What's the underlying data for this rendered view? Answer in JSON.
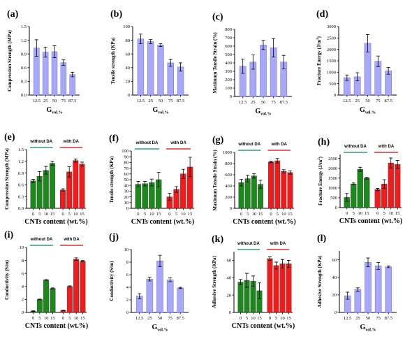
{
  "colors": {
    "blue": "#a8a8f8",
    "green": "#1b8a1b",
    "red": "#f21b1b",
    "green_line": "#2e9e7a",
    "red_line": "#e03030",
    "axis": "#000000"
  },
  "chart_data": [
    {
      "id": "a",
      "label": "(a)",
      "type": "bar",
      "ylabel": "Compression Strength (MPa)",
      "xlabel": "G",
      "xlabel_sub": "vol.%",
      "categories": [
        "12.5",
        "25",
        "50",
        "75",
        "87.5"
      ],
      "yticks": [
        "0.0",
        "0.3",
        "0.6",
        "0.9",
        "1.2",
        "1.5"
      ],
      "ylim": [
        0,
        1.5
      ],
      "values": [
        1.03,
        0.94,
        0.95,
        0.71,
        0.45
      ],
      "errors": [
        0.18,
        0.11,
        0.13,
        0.06,
        0.05
      ]
    },
    {
      "id": "b",
      "label": "(b)",
      "type": "bar",
      "ylabel": "Tensile strength (KPa)",
      "xlabel": "G",
      "xlabel_sub": "vol.%",
      "categories": [
        "12.5",
        "25",
        "50",
        "75",
        "87.5"
      ],
      "yticks": [
        "0",
        "20",
        "40",
        "60",
        "80",
        "100"
      ],
      "ylim": [
        0,
        100
      ],
      "values": [
        82,
        78,
        73,
        47,
        41
      ],
      "errors": [
        7,
        3,
        2,
        5,
        6
      ]
    },
    {
      "id": "c",
      "label": "(c)",
      "type": "bar",
      "ylabel": "Maximum Tensile Strain (%)",
      "xlabel": "G",
      "xlabel_sub": "vol.%",
      "categories": [
        "12.5",
        "25",
        "50",
        "75",
        "87.5"
      ],
      "yticks": [
        "0",
        "100",
        "200",
        "300",
        "400",
        "500",
        "600",
        "700",
        "800"
      ],
      "ylim": [
        0,
        800
      ],
      "values": [
        360,
        410,
        615,
        580,
        410
      ],
      "errors": [
        85,
        85,
        55,
        110,
        80
      ]
    },
    {
      "id": "d",
      "label": "(d)",
      "type": "bar",
      "ylabel": "Fracture Energy (J/m",
      "ylabel_sup": "2",
      "ylabel_end": ")",
      "xlabel": "G",
      "xlabel_sub": "vol.%",
      "categories": [
        "12.5",
        "25",
        "50",
        "75",
        "87.5"
      ],
      "yticks": [
        "0",
        "500",
        "1000",
        "1500",
        "2000",
        "2500",
        "3000"
      ],
      "ylim": [
        0,
        3000
      ],
      "values": [
        760,
        800,
        2270,
        1480,
        1060
      ],
      "errors": [
        120,
        180,
        380,
        230,
        150
      ]
    },
    {
      "id": "e",
      "label": "(e)",
      "type": "grouped-bar",
      "ylabel": "Compression Strength (MPa)",
      "xlabel": "CNTs content (wt.%)",
      "categories": [
        "0",
        "5",
        "10",
        "15"
      ],
      "yticks": [
        "0.0",
        "0.3",
        "0.6",
        "0.9",
        "1.2",
        "1.5"
      ],
      "ylim": [
        0,
        1.5
      ],
      "groups": [
        {
          "name": "without DA",
          "color": "green",
          "values": [
            0.7,
            0.82,
            0.97,
            1.15
          ],
          "errors": [
            0.04,
            0.12,
            0.1,
            0.05
          ]
        },
        {
          "name": "with DA",
          "color": "red",
          "values": [
            0.47,
            0.93,
            1.22,
            1.13
          ],
          "errors": [
            0.03,
            0.13,
            0.04,
            0.05
          ]
        }
      ]
    },
    {
      "id": "f",
      "label": "(f)",
      "type": "grouped-bar",
      "ylabel": "Tensile strength (KPa)",
      "xlabel": "CNTs content (wt.%)",
      "categories": [
        "0",
        "5",
        "10",
        "15"
      ],
      "yticks": [
        "0",
        "10",
        "20",
        "30",
        "40",
        "50",
        "60",
        "70",
        "80",
        "90",
        "100"
      ],
      "ylim": [
        0,
        100
      ],
      "groups": [
        {
          "name": "without DA",
          "color": "green",
          "values": [
            42,
            43,
            45,
            50
          ],
          "errors": [
            5,
            4,
            6,
            13
          ]
        },
        {
          "name": "with DA",
          "color": "red",
          "values": [
            20,
            33,
            60,
            72
          ],
          "errors": [
            6,
            5,
            8,
            17
          ]
        }
      ]
    },
    {
      "id": "g",
      "label": "(g)",
      "type": "grouped-bar",
      "ylabel": "Maximum Tensile Strain (%)",
      "xlabel": "CNTs content (wt.%)",
      "categories": [
        "0",
        "5",
        "10",
        "15"
      ],
      "yticks": [
        "0",
        "200",
        "400",
        "600",
        "800",
        "1000"
      ],
      "ylim": [
        0,
        1000
      ],
      "groups": [
        {
          "name": "without DA",
          "color": "green",
          "values": [
            460,
            530,
            580,
            430
          ],
          "errors": [
            60,
            60,
            40,
            70
          ]
        },
        {
          "name": "with DA",
          "color": "red",
          "values": [
            830,
            850,
            660,
            640
          ],
          "errors": [
            15,
            40,
            30,
            30
          ]
        }
      ]
    },
    {
      "id": "h",
      "label": "(h)",
      "type": "grouped-bar",
      "ylabel": "Fracture Energy (J/m",
      "ylabel_sup": "2",
      "ylabel_end": ")",
      "xlabel": "CNTs content (wt.%)",
      "categories": [
        "0",
        "5",
        "10",
        "15"
      ],
      "yticks": [
        "0",
        "500",
        "1000",
        "1500",
        "2000",
        "2500"
      ],
      "ylim": [
        0,
        2700
      ],
      "groups": [
        {
          "name": "without DA",
          "color": "green",
          "values": [
            520,
            1200,
            1950,
            1500
          ],
          "errors": [
            200,
            50,
            100,
            50
          ]
        },
        {
          "name": "with DA",
          "color": "red",
          "values": [
            920,
            1200,
            2270,
            2200
          ],
          "errors": [
            60,
            220,
            250,
            200
          ]
        }
      ]
    },
    {
      "id": "i",
      "label": "(i)",
      "type": "grouped-bar",
      "ylabel": "Conductivity (S/m)",
      "xlabel": "CNTs content (wt.%)",
      "categories": [
        "0",
        "5",
        "10",
        "15"
      ],
      "yticks": [
        "0",
        "2",
        "4",
        "6",
        "8",
        "10"
      ],
      "ylim": [
        0,
        10
      ],
      "groups": [
        {
          "name": "without DA",
          "color": "green",
          "values": [
            0.2,
            2.0,
            5.0,
            3.7
          ],
          "errors": [
            0.05,
            0.05,
            0.05,
            0.08
          ]
        },
        {
          "name": "with DA",
          "color": "red",
          "values": [
            0.3,
            4.0,
            8.2,
            7.9
          ],
          "errors": [
            0.05,
            0.1,
            0.2,
            0.1
          ]
        }
      ]
    },
    {
      "id": "j",
      "label": "(j)",
      "type": "bar",
      "ylabel": "Conductivity (S/m)",
      "xlabel": "G",
      "xlabel_sub": "vol.%",
      "categories": [
        "12.5",
        "25",
        "50",
        "75",
        "87.5"
      ],
      "yticks": [
        "0",
        "2",
        "4",
        "6",
        "8",
        "10"
      ],
      "ylim": [
        0,
        10
      ],
      "values": [
        2.6,
        5.3,
        8.2,
        5.2,
        3.9
      ],
      "errors": [
        0.4,
        0.3,
        0.9,
        0.3,
        0.1
      ]
    },
    {
      "id": "k",
      "label": "(k)",
      "type": "grouped-bar",
      "ylabel": "Adhesive Strength (KPa)",
      "xlabel": "CNTs content (wt.%)",
      "categories": [
        "0",
        "5",
        "10",
        "15"
      ],
      "yticks": [
        "0",
        "20",
        "40",
        "60"
      ],
      "ylim": [
        0,
        70
      ],
      "groups": [
        {
          "name": "without DA",
          "color": "green",
          "values": [
            35,
            37,
            36,
            25
          ],
          "errors": [
            3,
            8,
            6,
            9
          ]
        },
        {
          "name": "with DA",
          "color": "red",
          "values": [
            62,
            54,
            56,
            56
          ],
          "errors": [
            2,
            4,
            5,
            4
          ]
        }
      ]
    },
    {
      "id": "l",
      "label": "(l)",
      "type": "bar",
      "ylabel": "Adhesive Strength (KPa)",
      "xlabel": "G",
      "xlabel_sub": "vol.%",
      "categories": [
        "12.5",
        "25",
        "50",
        "75",
        "87.5"
      ],
      "yticks": [
        "0",
        "20",
        "40",
        "60"
      ],
      "ylim": [
        0,
        70
      ],
      "values": [
        19,
        26,
        57,
        53,
        52
      ],
      "errors": [
        4,
        2,
        5,
        4,
        1
      ]
    }
  ]
}
